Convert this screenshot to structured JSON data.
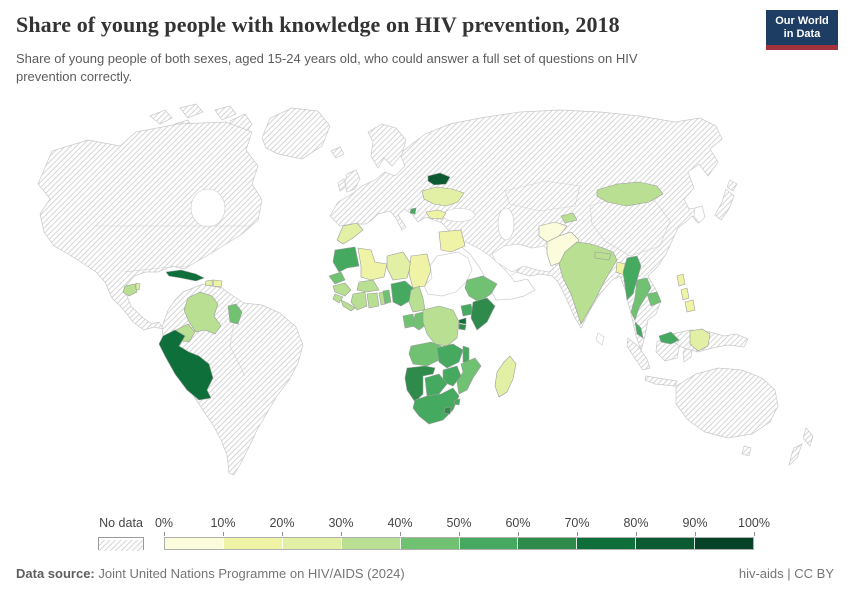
{
  "header": {
    "title": "Share of young people with knowledge on HIV prevention, 2018",
    "subtitle": "Share of young people of both sexes, aged 15-24 years old, who could answer a full set of questions on HIV prevention correctly.",
    "logo": {
      "line1": "Our World",
      "line2": "in Data",
      "bg_color": "#1d3d63",
      "stripe_color": "#a2333c"
    }
  },
  "legend": {
    "no_data_label": "No data",
    "tick_labels": [
      "0%",
      "10%",
      "20%",
      "30%",
      "40%",
      "50%",
      "60%",
      "70%",
      "80%",
      "90%",
      "100%"
    ]
  },
  "footer": {
    "source_label": "Data source:",
    "source_text": "Joint United Nations Programme on HIV/AIDS (2024)",
    "credit": "hiv-aids | CC BY"
  },
  "chart_data": {
    "type": "choropleth-map",
    "title": "Share of young people with knowledge on HIV prevention, 2018",
    "unit": "%",
    "bin_edges": [
      0,
      10,
      20,
      30,
      40,
      50,
      60,
      70,
      80,
      90,
      100
    ],
    "palette": [
      "#fbfcdc",
      "#eff3a6",
      "#e1f0a4",
      "#b8df92",
      "#70c172",
      "#45a95f",
      "#2e8b4b",
      "#0e6f3a",
      "#0c5a31",
      "#064227"
    ],
    "no_data_style": "hatched",
    "no_data_regions": [
      "United States",
      "Canada",
      "Greenland",
      "Brazil",
      "Venezuela",
      "Argentina",
      "most of Europe",
      "Russia",
      "China",
      "Kazakhstan",
      "Turkey",
      "Iran",
      "Saudi Arabia",
      "Sudan",
      "Central African Republic",
      "Tanzania",
      "Somalia",
      "Libya",
      "Algeria",
      "Japan",
      "South Korea",
      "Vietnam",
      "Laos",
      "Indonesia",
      "Australia",
      "New Zealand"
    ],
    "note": "Country values estimated from map fill colors (bin midpoints).",
    "countries": [
      {
        "id": "guatemala",
        "name": "Guatemala",
        "value": 35,
        "bin": 3
      },
      {
        "id": "belize",
        "name": "Belize",
        "value": 25,
        "bin": 2
      },
      {
        "id": "cuba",
        "name": "Cuba",
        "value": 75,
        "bin": 7
      },
      {
        "id": "haiti",
        "name": "Haiti",
        "value": 25,
        "bin": 2
      },
      {
        "id": "dominican_republic",
        "name": "Dominican Republic",
        "value": 15,
        "bin": 1
      },
      {
        "id": "colombia",
        "name": "Colombia",
        "value": 35,
        "bin": 3
      },
      {
        "id": "ecuador",
        "name": "Ecuador",
        "value": 35,
        "bin": 3
      },
      {
        "id": "guyana",
        "name": "Guyana",
        "value": 45,
        "bin": 4
      },
      {
        "id": "peru",
        "name": "Peru",
        "value": 75,
        "bin": 7
      },
      {
        "id": "belarus",
        "name": "Belarus",
        "value": 85,
        "bin": 8
      },
      {
        "id": "ukraine",
        "name": "Ukraine",
        "value": 25,
        "bin": 2
      },
      {
        "id": "bulgaria",
        "name": "Bulgaria",
        "value": 15,
        "bin": 1
      },
      {
        "id": "montenegro",
        "name": "Montenegro",
        "value": 55,
        "bin": 5
      },
      {
        "id": "morocco",
        "name": "Morocco",
        "value": 25,
        "bin": 2
      },
      {
        "id": "mauritania",
        "name": "Mauritania",
        "value": 55,
        "bin": 5
      },
      {
        "id": "mali",
        "name": "Mali",
        "value": 15,
        "bin": 1
      },
      {
        "id": "senegal",
        "name": "Senegal",
        "value": 45,
        "bin": 4
      },
      {
        "id": "guinea",
        "name": "Guinea",
        "value": 35,
        "bin": 3
      },
      {
        "id": "sierra_leone",
        "name": "Sierra Leone",
        "value": 35,
        "bin": 3
      },
      {
        "id": "liberia",
        "name": "Liberia",
        "value": 35,
        "bin": 3
      },
      {
        "id": "cote_divoire",
        "name": "Cote d'Ivoire",
        "value": 35,
        "bin": 3
      },
      {
        "id": "ghana",
        "name": "Ghana",
        "value": 35,
        "bin": 3
      },
      {
        "id": "burkina_faso",
        "name": "Burkina Faso",
        "value": 35,
        "bin": 3
      },
      {
        "id": "togo",
        "name": "Togo",
        "value": 35,
        "bin": 3
      },
      {
        "id": "benin",
        "name": "Benin",
        "value": 45,
        "bin": 4
      },
      {
        "id": "niger",
        "name": "Niger",
        "value": 25,
        "bin": 2
      },
      {
        "id": "chad",
        "name": "Chad",
        "value": 15,
        "bin": 1
      },
      {
        "id": "nigeria",
        "name": "Nigeria",
        "value": 55,
        "bin": 5
      },
      {
        "id": "cameroon",
        "name": "Cameroon",
        "value": 35,
        "bin": 3
      },
      {
        "id": "gabon",
        "name": "Gabon",
        "value": 45,
        "bin": 4
      },
      {
        "id": "congo",
        "name": "Congo",
        "value": 45,
        "bin": 4
      },
      {
        "id": "dr_congo",
        "name": "Democratic Republic of Congo",
        "value": 35,
        "bin": 3
      },
      {
        "id": "ethiopia",
        "name": "Ethiopia",
        "value": 45,
        "bin": 4
      },
      {
        "id": "uganda",
        "name": "Uganda",
        "value": 55,
        "bin": 5
      },
      {
        "id": "kenya",
        "name": "Kenya",
        "value": 65,
        "bin": 6
      },
      {
        "id": "rwanda",
        "name": "Rwanda",
        "value": 75,
        "bin": 7
      },
      {
        "id": "burundi",
        "name": "Burundi",
        "value": 65,
        "bin": 6
      },
      {
        "id": "angola",
        "name": "Angola",
        "value": 45,
        "bin": 4
      },
      {
        "id": "zambia",
        "name": "Zambia",
        "value": 55,
        "bin": 5
      },
      {
        "id": "malawi",
        "name": "Malawi",
        "value": 55,
        "bin": 5
      },
      {
        "id": "mozambique",
        "name": "Mozambique",
        "value": 45,
        "bin": 4
      },
      {
        "id": "zimbabwe",
        "name": "Zimbabwe",
        "value": 55,
        "bin": 5
      },
      {
        "id": "namibia",
        "name": "Namibia",
        "value": 65,
        "bin": 6
      },
      {
        "id": "botswana",
        "name": "Botswana",
        "value": 55,
        "bin": 5
      },
      {
        "id": "south_africa",
        "name": "South Africa",
        "value": 55,
        "bin": 5
      },
      {
        "id": "lesotho",
        "name": "Lesotho",
        "value": 65,
        "bin": 6
      },
      {
        "id": "eswatini",
        "name": "Eswatini",
        "value": 55,
        "bin": 5
      },
      {
        "id": "madagascar",
        "name": "Madagascar",
        "value": 25,
        "bin": 2
      },
      {
        "id": "egypt",
        "name": "Egypt",
        "value": 15,
        "bin": 1
      },
      {
        "id": "afghanistan",
        "name": "Afghanistan",
        "value": 5,
        "bin": 0
      },
      {
        "id": "pakistan",
        "name": "Pakistan",
        "value": 5,
        "bin": 0
      },
      {
        "id": "tajikistan",
        "name": "Tajikistan",
        "value": 35,
        "bin": 3
      },
      {
        "id": "mongolia",
        "name": "Mongolia",
        "value": 35,
        "bin": 3
      },
      {
        "id": "india",
        "name": "India",
        "value": 35,
        "bin": 3
      },
      {
        "id": "nepal",
        "name": "Nepal",
        "value": 35,
        "bin": 3
      },
      {
        "id": "bangladesh",
        "name": "Bangladesh",
        "value": 15,
        "bin": 1
      },
      {
        "id": "myanmar",
        "name": "Myanmar",
        "value": 55,
        "bin": 5
      },
      {
        "id": "thailand",
        "name": "Thailand",
        "value": 45,
        "bin": 4
      },
      {
        "id": "cambodia",
        "name": "Cambodia",
        "value": 45,
        "bin": 4
      },
      {
        "id": "malaysia",
        "name": "Malaysia",
        "value": 55,
        "bin": 5
      },
      {
        "id": "philippines",
        "name": "Philippines",
        "value": 15,
        "bin": 1
      },
      {
        "id": "papua_new_guinea",
        "name": "Papua New Guinea",
        "value": 25,
        "bin": 2
      }
    ]
  }
}
